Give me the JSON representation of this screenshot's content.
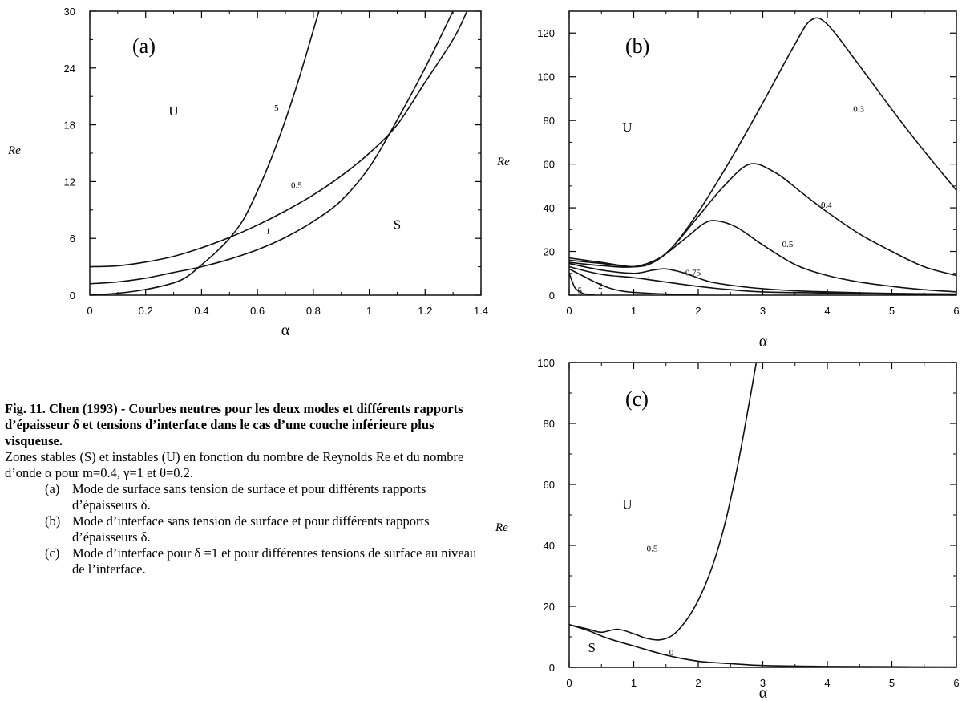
{
  "caption": {
    "title": "Fig. 11. Chen (1993) - Courbes neutres pour les deux modes et différents rapports d’épaisseur δ et tensions d’interface dans le cas d’une couche inférieure plus visqueuse.",
    "body": "Zones stables (S) et instables (U) en fonction du nombre de Reynolds Re et du nombre d’onde α pour m=0.4, γ=1 et θ=0.2.",
    "items": [
      {
        "label": "(a)",
        "text": "Mode de surface sans tension de surface et pour différents rapports d’épaisseurs δ."
      },
      {
        "label": "(b)",
        "text": "Mode d’interface sans tension de surface et pour différents rapports d’épaisseurs δ."
      },
      {
        "label": "(c)",
        "text": "Mode d’interface pour δ =1 et pour différentes tensions de surface au niveau de l’interface."
      }
    ]
  },
  "chart_data": [
    {
      "type": "line",
      "panel_label": "(a)",
      "xlabel": "α",
      "ylabel": "Re",
      "xlim": [
        0,
        1.4
      ],
      "ylim": [
        0,
        30
      ],
      "xticks": [
        "0",
        "0.2",
        "0.4",
        "0.6",
        "0.8",
        "1",
        "1.2",
        "1.4"
      ],
      "yticks": [
        "0",
        "6",
        "12",
        "18",
        "24",
        "30"
      ],
      "regions": [
        {
          "label": "U",
          "x": 0.3,
          "y": 19
        },
        {
          "label": "S",
          "x": 1.1,
          "y": 7
        }
      ],
      "series": [
        {
          "name": "5",
          "label_at": [
            0.66,
            19.5
          ],
          "points": [
            [
              0,
              0
            ],
            [
              0.1,
              0.2
            ],
            [
              0.2,
              0.6
            ],
            [
              0.3,
              1.3
            ],
            [
              0.35,
              2
            ],
            [
              0.4,
              3.2
            ],
            [
              0.45,
              4.5
            ],
            [
              0.5,
              6
            ],
            [
              0.55,
              8
            ],
            [
              0.6,
              11
            ],
            [
              0.65,
              14.5
            ],
            [
              0.7,
              18.5
            ],
            [
              0.75,
              23
            ],
            [
              0.8,
              28
            ],
            [
              0.82,
              30
            ]
          ]
        },
        {
          "name": "0.5",
          "label_at": [
            0.72,
            11.3
          ],
          "points": [
            [
              0,
              3
            ],
            [
              0.1,
              3.1
            ],
            [
              0.2,
              3.5
            ],
            [
              0.3,
              4.1
            ],
            [
              0.4,
              5
            ],
            [
              0.5,
              6.1
            ],
            [
              0.6,
              7.4
            ],
            [
              0.7,
              8.9
            ],
            [
              0.8,
              10.6
            ],
            [
              0.9,
              12.6
            ],
            [
              1.0,
              15
            ],
            [
              1.1,
              18
            ],
            [
              1.2,
              22.5
            ],
            [
              1.3,
              27
            ],
            [
              1.35,
              30
            ]
          ]
        },
        {
          "name": "1",
          "label_at": [
            0.63,
            6.5
          ],
          "points": [
            [
              0,
              1.2
            ],
            [
              0.1,
              1.4
            ],
            [
              0.2,
              1.8
            ],
            [
              0.3,
              2.4
            ],
            [
              0.4,
              3
            ],
            [
              0.5,
              3.8
            ],
            [
              0.6,
              4.8
            ],
            [
              0.7,
              6.1
            ],
            [
              0.8,
              7.8
            ],
            [
              0.9,
              10
            ],
            [
              1.0,
              13.5
            ],
            [
              1.1,
              18.5
            ],
            [
              1.2,
              24
            ],
            [
              1.3,
              30
            ]
          ]
        }
      ]
    },
    {
      "type": "line",
      "panel_label": "(b)",
      "xlabel": "α",
      "ylabel": "Re",
      "xlim": [
        0,
        6
      ],
      "ylim": [
        0,
        130
      ],
      "xticks": [
        "0",
        "1",
        "2",
        "3",
        "4",
        "5",
        "6"
      ],
      "yticks": [
        "0",
        "20",
        "40",
        "60",
        "80",
        "100",
        "120"
      ],
      "regions": [
        {
          "label": "U",
          "x": 0.9,
          "y": 75
        }
      ],
      "series": [
        {
          "name": "0.3",
          "label_at": [
            4.4,
            84
          ],
          "points": [
            [
              0,
              17
            ],
            [
              0.5,
              15
            ],
            [
              1.0,
              13
            ],
            [
              1.3,
              15
            ],
            [
              1.6,
              22
            ],
            [
              2.0,
              38
            ],
            [
              2.5,
              62
            ],
            [
              3.0,
              88
            ],
            [
              3.5,
              115
            ],
            [
              3.75,
              126
            ],
            [
              4.0,
              124
            ],
            [
              4.5,
              105
            ],
            [
              5.0,
              85
            ],
            [
              5.5,
              66
            ],
            [
              6.0,
              48
            ]
          ]
        },
        {
          "name": "0.4",
          "label_at": [
            3.9,
            40
          ],
          "points": [
            [
              0,
              16
            ],
            [
              0.5,
              14.5
            ],
            [
              1.0,
              13
            ],
            [
              1.3,
              15
            ],
            [
              1.6,
              22
            ],
            [
              2.0,
              36
            ],
            [
              2.4,
              50
            ],
            [
              2.8,
              60
            ],
            [
              3.2,
              56
            ],
            [
              3.6,
              47
            ],
            [
              4.0,
              38
            ],
            [
              4.5,
              28
            ],
            [
              5.0,
              20
            ],
            [
              5.5,
              13
            ],
            [
              6.0,
              9
            ]
          ]
        },
        {
          "name": "0.5",
          "label_at": [
            3.3,
            22
          ],
          "points": [
            [
              0,
              15
            ],
            [
              0.5,
              13.5
            ],
            [
              1.0,
              13
            ],
            [
              1.4,
              17
            ],
            [
              1.8,
              26
            ],
            [
              2.1,
              33
            ],
            [
              2.3,
              34
            ],
            [
              2.6,
              31
            ],
            [
              3.0,
              23
            ],
            [
              3.5,
              14
            ],
            [
              4.0,
              9
            ],
            [
              4.5,
              6
            ],
            [
              5.0,
              4
            ],
            [
              5.5,
              2.5
            ],
            [
              6.0,
              1.5
            ]
          ]
        },
        {
          "name": "0.75",
          "label_at": [
            1.8,
            9
          ],
          "points": [
            [
              0,
              14.5
            ],
            [
              0.5,
              11.5
            ],
            [
              1.0,
              10
            ],
            [
              1.3,
              11.5
            ],
            [
              1.5,
              12
            ],
            [
              1.8,
              10
            ],
            [
              2.2,
              6
            ],
            [
              2.8,
              3.5
            ],
            [
              3.5,
              2
            ],
            [
              4.0,
              1.5
            ],
            [
              5.0,
              0.8
            ],
            [
              6.0,
              0.5
            ]
          ]
        },
        {
          "name": "1",
          "label_at": [
            1.2,
            6
          ],
          "points": [
            [
              0,
              13
            ],
            [
              0.5,
              9.5
            ],
            [
              1.0,
              8
            ],
            [
              1.5,
              6
            ],
            [
              2.0,
              4
            ],
            [
              2.5,
              2.5
            ],
            [
              3.0,
              1.5
            ],
            [
              4.0,
              1
            ],
            [
              5.0,
              0.5
            ],
            [
              6.0,
              0.3
            ]
          ]
        },
        {
          "name": "2",
          "label_at": [
            0.45,
            3
          ],
          "points": [
            [
              0,
              12
            ],
            [
              0.2,
              9
            ],
            [
              0.4,
              6
            ],
            [
              0.6,
              3.5
            ],
            [
              0.8,
              2
            ],
            [
              1.0,
              1.3
            ],
            [
              1.5,
              0.5
            ],
            [
              2.0,
              0.2
            ]
          ]
        },
        {
          "name": "5",
          "label_at": [
            0.13,
            1
          ],
          "points": [
            [
              0,
              10
            ],
            [
              0.05,
              6
            ],
            [
              0.1,
              3
            ],
            [
              0.2,
              1
            ],
            [
              0.3,
              0.3
            ],
            [
              0.4,
              0
            ]
          ]
        }
      ]
    },
    {
      "type": "line",
      "panel_label": "(c)",
      "xlabel": "α",
      "ylabel": "Re",
      "xlim": [
        0,
        6
      ],
      "ylim": [
        0,
        100
      ],
      "xticks": [
        "0",
        "1",
        "2",
        "3",
        "4",
        "5",
        "6"
      ],
      "yticks": [
        "0",
        "20",
        "40",
        "60",
        "80",
        "100"
      ],
      "regions": [
        {
          "label": "U",
          "x": 0.9,
          "y": 52
        },
        {
          "label": "S",
          "x": 0.35,
          "y": 5
        }
      ],
      "series": [
        {
          "name": "0.5",
          "label_at": [
            1.2,
            38
          ],
          "points": [
            [
              0,
              14
            ],
            [
              0.3,
              12.5
            ],
            [
              0.5,
              11.5
            ],
            [
              0.75,
              12.5
            ],
            [
              1.0,
              11
            ],
            [
              1.2,
              9.5
            ],
            [
              1.4,
              9
            ],
            [
              1.6,
              10.5
            ],
            [
              1.8,
              15
            ],
            [
              2.0,
              22
            ],
            [
              2.2,
              32
            ],
            [
              2.4,
              46
            ],
            [
              2.6,
              65
            ],
            [
              2.8,
              88
            ],
            [
              2.9,
              100
            ]
          ]
        },
        {
          "name": "0",
          "label_at": [
            1.55,
            4
          ],
          "points": [
            [
              0,
              14
            ],
            [
              0.3,
              12
            ],
            [
              0.6,
              9.5
            ],
            [
              1.0,
              7
            ],
            [
              1.5,
              4
            ],
            [
              2.0,
              2
            ],
            [
              2.5,
              1.2
            ],
            [
              3.0,
              0.6
            ],
            [
              4.0,
              0.3
            ],
            [
              5.0,
              0.2
            ],
            [
              6.0,
              0.1
            ]
          ]
        }
      ]
    }
  ]
}
